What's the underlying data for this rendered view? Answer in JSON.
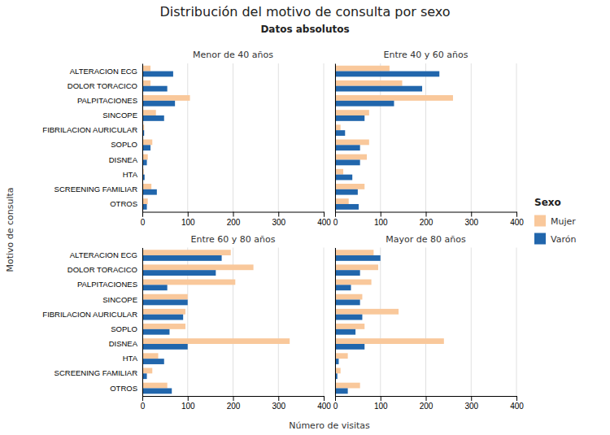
{
  "title": "Distribución del motivo de consulta por sexo",
  "subtitle": "Datos absolutos",
  "xlabel": "Número de visitas",
  "ylabel": "Motivo de consulta",
  "legend_title": "Sexo",
  "chart_data": [
    {
      "type": "bar",
      "orientation": "horizontal",
      "title": "Menor de 40 años",
      "categories": [
        "ALTERACION ECG",
        "DOLOR TORACICO",
        "PALPITACIONES",
        "SINCOPE",
        "FIBRILACION AURICULAR",
        "SOPLO",
        "DISNEA",
        "HTA",
        "SCREENING FAMILIAR",
        "OTROS"
      ],
      "series": [
        {
          "name": "Mujer",
          "color": "#F9C89B",
          "values": [
            18,
            18,
            105,
            30,
            4,
            22,
            12,
            3,
            20,
            12
          ]
        },
        {
          "name": "Varón",
          "color": "#2166AC",
          "values": [
            68,
            55,
            72,
            48,
            4,
            18,
            10,
            5,
            32,
            10
          ]
        }
      ],
      "xlim": [
        0,
        400
      ],
      "xticks": [
        0,
        100,
        200,
        300,
        400
      ],
      "grid": true,
      "legend": "right"
    },
    {
      "type": "bar",
      "orientation": "horizontal",
      "title": "Entre 40 y 60 años",
      "categories": [
        "ALTERACION ECG",
        "DOLOR TORACICO",
        "PALPITACIONES",
        "SINCOPE",
        "FIBRILACION AURICULAR",
        "SOPLO",
        "DISNEA",
        "HTA",
        "SCREENING FAMILIAR",
        "OTROS"
      ],
      "series": [
        {
          "name": "Mujer",
          "color": "#F9C89B",
          "values": [
            120,
            148,
            260,
            75,
            12,
            75,
            70,
            18,
            65,
            30
          ]
        },
        {
          "name": "Varón",
          "color": "#2166AC",
          "values": [
            230,
            192,
            130,
            65,
            22,
            55,
            55,
            38,
            50,
            52
          ]
        }
      ],
      "xlim": [
        0,
        400
      ],
      "xticks": [
        0,
        100,
        200,
        300,
        400
      ],
      "grid": true,
      "tick_labels": "x"
    },
    {
      "type": "bar",
      "orientation": "horizontal",
      "title": "Entre 60 y 80 años",
      "categories": [
        "ALTERACION ECG",
        "DOLOR TORACICO",
        "PALPITACIONES",
        "SINCOPE",
        "FIBRILACION AURICULAR",
        "SOPLO",
        "DISNEA",
        "HTA",
        "SCREENING FAMILIAR",
        "OTROS"
      ],
      "series": [
        {
          "name": "Mujer",
          "color": "#F9C89B",
          "values": [
            195,
            245,
            205,
            100,
            95,
            95,
            325,
            35,
            22,
            55
          ]
        },
        {
          "name": "Varón",
          "color": "#2166AC",
          "values": [
            175,
            162,
            55,
            100,
            90,
            60,
            100,
            48,
            10,
            65
          ]
        }
      ],
      "xlim": [
        0,
        400
      ],
      "xticks": [
        0,
        100,
        200,
        300,
        400
      ],
      "grid": true
    },
    {
      "type": "bar",
      "orientation": "horizontal",
      "title": "Mayor de 80 años",
      "categories": [
        "ALTERACION ECG",
        "DOLOR TORACICO",
        "PALPITACIONES",
        "SINCOPE",
        "FIBRILACION AURICULAR",
        "SOPLO",
        "DISNEA",
        "HTA",
        "SCREENING FAMILIAR",
        "OTROS"
      ],
      "series": [
        {
          "name": "Mujer",
          "color": "#F9C89B",
          "values": [
            85,
            95,
            80,
            60,
            140,
            65,
            240,
            28,
            12,
            55
          ]
        },
        {
          "name": "Varón",
          "color": "#2166AC",
          "values": [
            100,
            55,
            35,
            55,
            60,
            45,
            65,
            8,
            5,
            28
          ]
        }
      ],
      "xlim": [
        0,
        400
      ],
      "xticks": [
        0,
        100,
        200,
        300,
        400
      ],
      "grid": true,
      "tick_labels": "x"
    }
  ]
}
